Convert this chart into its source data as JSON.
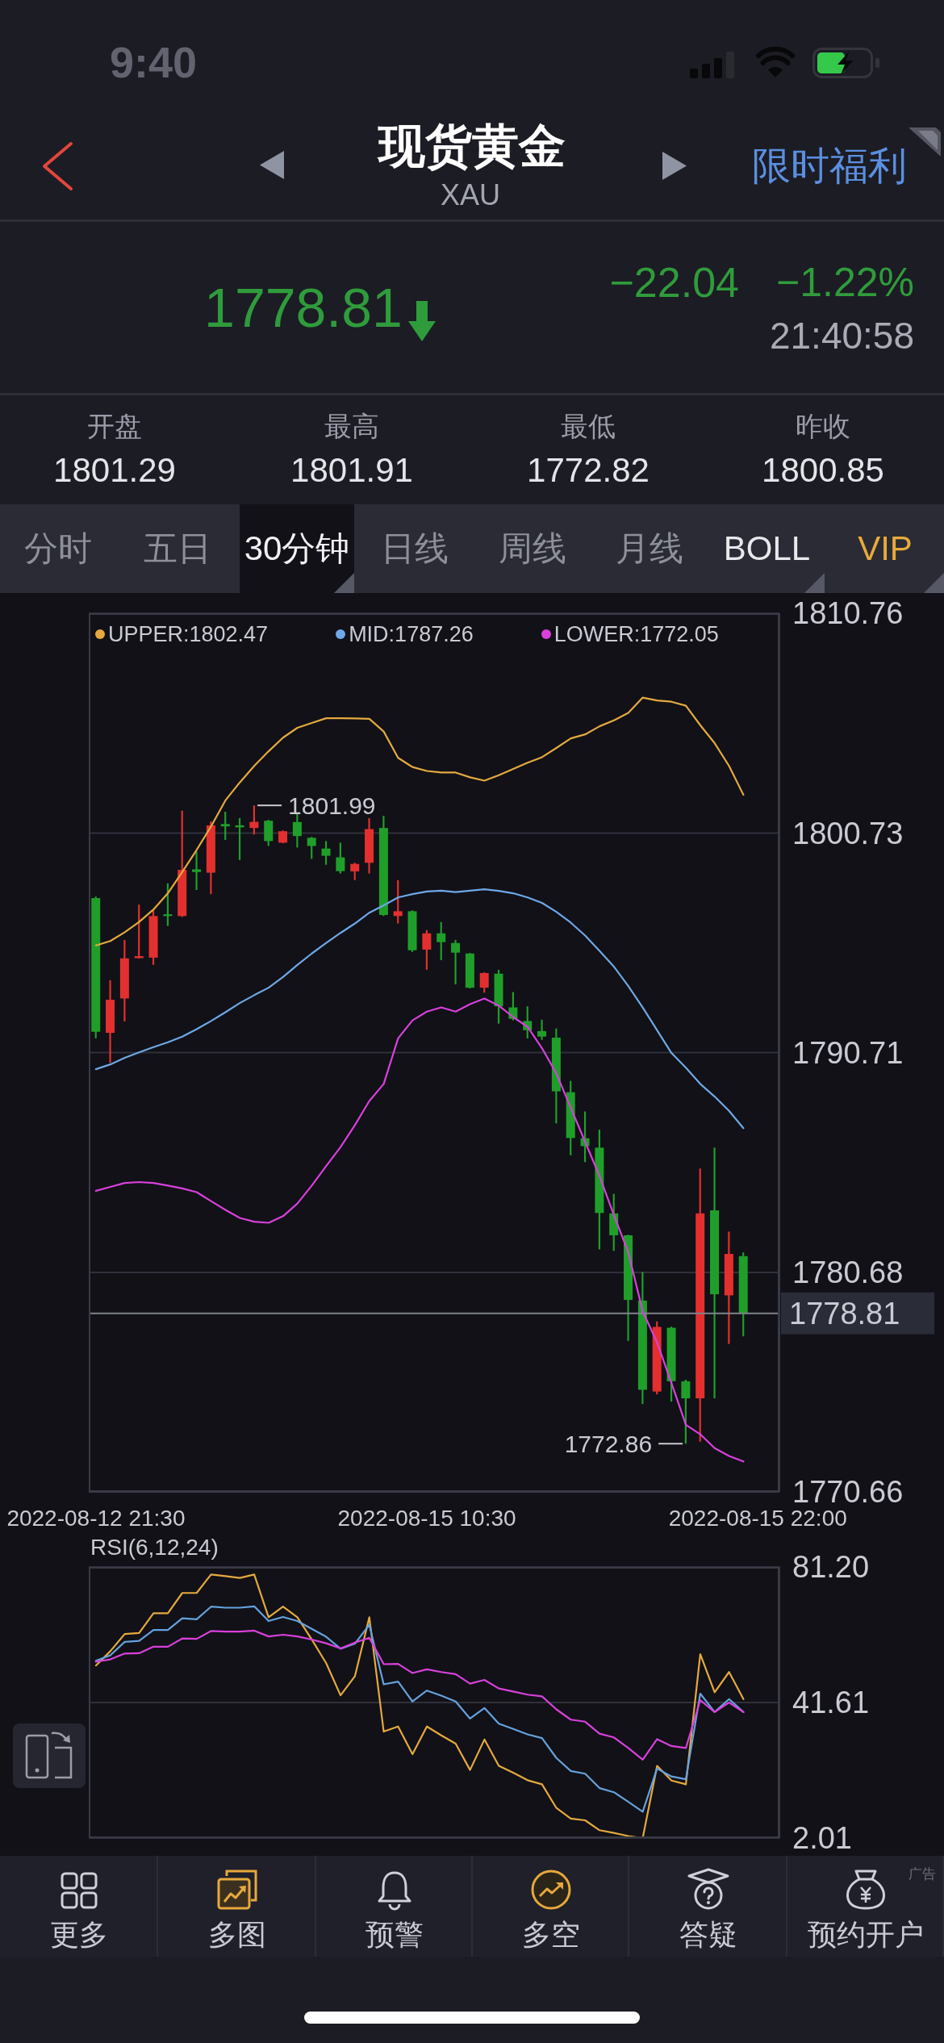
{
  "chart_data": [
    {
      "type": "other",
      "title": "现货黄金",
      "subtitle": "XAU",
      "annotations": [
        "9:40",
        "限时福利",
        "1778.81",
        "−22.04",
        "−1.22%",
        "21:40:58",
        "开盘",
        "1801.29",
        "最高",
        "1801.91",
        "最低",
        "1772.82",
        "昨收",
        "1800.85",
        "分时",
        "五日",
        "30分钟",
        "日线",
        "周线",
        "月线",
        "BOLL",
        "VIP"
      ]
    },
    {
      "type": "candlestick",
      "categories": [
        "2022-08-12 21:30",
        null,
        null,
        null,
        null,
        null,
        null,
        null,
        null,
        null,
        null,
        null,
        null,
        null,
        null,
        null,
        null,
        null,
        null,
        null,
        null,
        null,
        null,
        "2022-08-15 10:30",
        null,
        null,
        null,
        null,
        null,
        null,
        null,
        null,
        null,
        null,
        null,
        null,
        null,
        null,
        null,
        null,
        null,
        null,
        null,
        null,
        null,
        null,
        "2022-08-15 22:00",
        null
      ],
      "ohlc": [
        [
          1797.76,
          1797.83,
          1791.36,
          1791.66
        ],
        [
          1791.61,
          1794.01,
          1790.24,
          1793.12
        ],
        [
          1793.18,
          1795.85,
          1792.13,
          1795.01
        ],
        [
          1795.02,
          1797.46,
          1795.0,
          1795.11
        ],
        [
          1795.04,
          1797.19,
          1794.71,
          1796.94
        ],
        [
          1797.02,
          1798.43,
          1796.49,
          1796.94
        ],
        [
          1796.94,
          1801.75,
          1796.9,
          1799.05
        ],
        [
          1799.07,
          1799.87,
          1798.13,
          1798.95
        ],
        [
          1798.92,
          1801.26,
          1797.94,
          1801.08
        ],
        [
          1801.14,
          1801.7,
          1800.41,
          1801.03
        ],
        [
          1801.08,
          1801.41,
          1799.5,
          1800.99
        ],
        [
          1800.96,
          1801.99,
          1800.66,
          1801.24
        ],
        [
          1801.29,
          1801.33,
          1800.14,
          1800.36
        ],
        [
          1800.29,
          1800.85,
          1800.26,
          1800.81
        ],
        [
          1801.23,
          1801.63,
          1800.07,
          1800.59
        ],
        [
          1800.51,
          1800.55,
          1799.55,
          1800.14
        ],
        [
          1800.02,
          1800.36,
          1799.28,
          1799.69
        ],
        [
          1799.62,
          1800.29,
          1798.88,
          1798.99
        ],
        [
          1798.98,
          1799.37,
          1798.58,
          1799.32
        ],
        [
          1799.37,
          1801.41,
          1798.88,
          1800.91
        ],
        [
          1800.96,
          1801.51,
          1796.94,
          1796.99
        ],
        [
          1796.94,
          1798.58,
          1796.6,
          1797.16
        ],
        [
          1797.16,
          1797.2,
          1795.3,
          1795.38
        ],
        [
          1795.41,
          1796.3,
          1794.49,
          1796.15
        ],
        [
          1796.15,
          1796.67,
          1794.93,
          1795.75
        ],
        [
          1795.71,
          1795.85,
          1793.82,
          1795.27
        ],
        [
          1795.23,
          1795.26,
          1793.64,
          1793.67
        ],
        [
          1793.67,
          1794.37,
          1793.44,
          1794.34
        ],
        [
          1794.31,
          1794.49,
          1792.03,
          1792.82
        ],
        [
          1792.77,
          1793.47,
          1792.18,
          1792.25
        ],
        [
          1792.15,
          1792.82,
          1791.36,
          1791.73
        ],
        [
          1791.69,
          1792.21,
          1791.29,
          1791.44
        ],
        [
          1791.39,
          1791.81,
          1787.48,
          1788.94
        ],
        [
          1788.9,
          1789.42,
          1786.02,
          1786.81
        ],
        [
          1786.8,
          1788.02,
          1785.71,
          1786.44
        ],
        [
          1786.37,
          1787.19,
          1781.73,
          1783.39
        ],
        [
          1783.37,
          1784.26,
          1781.66,
          1782.37
        ],
        [
          1782.37,
          1782.4,
          1777.55,
          1779.42
        ],
        [
          1779.39,
          1780.7,
          1774.67,
          1775.32
        ],
        [
          1775.24,
          1778.44,
          1775.11,
          1778.19
        ],
        [
          1778.15,
          1778.2,
          1774.78,
          1775.71
        ],
        [
          1775.71,
          1775.78,
          1772.86,
          1774.93
        ],
        [
          1774.93,
          1785.42,
          1772.95,
          1783.37
        ],
        [
          1783.51,
          1786.37,
          1774.93,
          1779.68
        ],
        [
          1779.63,
          1782.54,
          1777.41,
          1781.52
        ],
        [
          1781.42,
          1781.59,
          1777.76,
          1778.81
        ],
        null,
        null
      ],
      "colors": [
        "#1f9f2a",
        "#e3302f",
        "#e3302f",
        "#e3302f",
        "#e3302f",
        "#1f9f2a",
        "#e3302f",
        "#1f9f2a",
        "#e3302f",
        "#1f9f2a",
        "#1f9f2a",
        "#e3302f",
        "#1f9f2a",
        "#e3302f",
        "#1f9f2a",
        "#1f9f2a",
        "#1f9f2a",
        "#1f9f2a",
        "#e3302f",
        "#e3302f",
        "#1f9f2a",
        "#e3302f",
        "#1f9f2a",
        "#e3302f",
        "#1f9f2a",
        "#1f9f2a",
        "#1f9f2a",
        "#e3302f",
        "#1f9f2a",
        "#1f9f2a",
        "#1f9f2a",
        "#1f9f2a",
        "#1f9f2a",
        "#1f9f2a",
        "#1f9f2a",
        "#1f9f2a",
        "#1f9f2a",
        "#1f9f2a",
        "#1f9f2a",
        "#e3302f",
        "#1f9f2a",
        "#1f9f2a",
        "#e3302f",
        "#1f9f2a",
        "#e3302f",
        "#1f9f2a",
        null,
        null
      ],
      "series": [
        {
          "type": "line",
          "name": "UPPER:1802.47",
          "color": "#e5a93f",
          "values": [
            1795.6,
            1795.8,
            1796.2,
            1796.67,
            1797.24,
            1797.98,
            1798.95,
            1799.96,
            1801.03,
            1802.22,
            1803.04,
            1803.79,
            1804.46,
            1805.08,
            1805.53,
            1805.75,
            1805.97,
            1805.97,
            1805.96,
            1805.94,
            1805.36,
            1804.16,
            1803.74,
            1803.56,
            1803.49,
            1803.49,
            1803.27,
            1803.12,
            1803.37,
            1803.65,
            1803.94,
            1804.19,
            1804.61,
            1805.05,
            1805.23,
            1805.6,
            1805.87,
            1806.21,
            1806.91,
            1806.78,
            1806.72,
            1806.54,
            1805.65,
            1804.83,
            1803.79,
            1802.47,
            null,
            null
          ]
        },
        {
          "type": "line",
          "name": "MID:1787.26",
          "color": "#6ea8e6",
          "values": [
            1789.95,
            1790.17,
            1790.47,
            1790.72,
            1790.96,
            1791.18,
            1791.44,
            1791.78,
            1792.15,
            1792.55,
            1792.97,
            1793.33,
            1793.67,
            1794.16,
            1794.71,
            1795.23,
            1795.71,
            1796.17,
            1796.6,
            1797.09,
            1797.43,
            1797.79,
            1797.94,
            1798.06,
            1798.1,
            1798.03,
            1798.1,
            1798.16,
            1798.09,
            1797.98,
            1797.79,
            1797.54,
            1797.13,
            1796.64,
            1796.05,
            1795.35,
            1794.63,
            1793.74,
            1792.77,
            1791.73,
            1790.69,
            1790.02,
            1789.28,
            1788.7,
            1788.05,
            1787.26,
            null,
            null
          ]
        },
        {
          "type": "line",
          "name": "LOWER:1772.05",
          "color": "#d940dc",
          "values": [
            1784.4,
            1784.58,
            1784.76,
            1784.8,
            1784.76,
            1784.64,
            1784.51,
            1784.34,
            1783.93,
            1783.53,
            1783.16,
            1782.99,
            1782.94,
            1783.24,
            1783.82,
            1784.64,
            1785.53,
            1786.4,
            1787.4,
            1788.5,
            1789.28,
            1791.36,
            1792.18,
            1792.58,
            1792.77,
            1792.58,
            1792.92,
            1793.18,
            1792.85,
            1792.33,
            1791.88,
            1790.91,
            1789.75,
            1788.19,
            1786.63,
            1785.07,
            1783.29,
            1781.59,
            1778.9,
            1777.48,
            1775.63,
            1773.72,
            1773.29,
            1772.66,
            1772.3,
            1772.05,
            null,
            null
          ]
        }
      ],
      "ylim": [
        1770.66,
        1810.76
      ],
      "yticks": [
        1770.66,
        1780.68,
        1790.71,
        1800.73,
        1810.76
      ],
      "grid": "y",
      "legend": "top",
      "annotations": [
        "1801.99",
        "1772.86"
      ],
      "ref_lines": [
        {
          "axis": "y",
          "value": 1778.81,
          "label": "1778.81",
          "color": "#80828d"
        }
      ]
    },
    {
      "type": "line",
      "title": "RSI(6,12,24)",
      "categories": [
        "2022-08-12 21:30",
        null,
        null,
        null,
        null,
        null,
        null,
        null,
        null,
        null,
        null,
        null,
        null,
        null,
        null,
        null,
        null,
        null,
        null,
        null,
        null,
        null,
        null,
        "2022-08-15 10:30",
        null,
        null,
        null,
        null,
        null,
        null,
        null,
        null,
        null,
        null,
        null,
        null,
        null,
        null,
        null,
        null,
        null,
        null,
        null,
        null,
        null,
        null,
        "2022-08-15 22:00",
        null
      ],
      "series": [
        {
          "color": "#e5a93f",
          "values": [
            52.4,
            56.6,
            61.6,
            61.9,
            67.7,
            67.7,
            73.6,
            73.6,
            79.0,
            78.5,
            78.0,
            79.0,
            66.5,
            69.6,
            66.5,
            60.0,
            53.1,
            43.7,
            49.3,
            66.5,
            33.1,
            34.6,
            26.5,
            34.6,
            32.0,
            29.6,
            21.9,
            30.8,
            23.1,
            21.1,
            18.9,
            17.7,
            10.8,
            7.7,
            7.2,
            4.3,
            3.5,
            2.6,
            2.01,
            23.1,
            18.8,
            17.7,
            55.7,
            44.6,
            50.5,
            42.6,
            null,
            null
          ]
        },
        {
          "color": "#65a2de",
          "values": [
            53.8,
            55.4,
            59.3,
            59.6,
            62.8,
            62.8,
            66.2,
            65.9,
            69.6,
            69.3,
            69.3,
            69.7,
            65.4,
            66.6,
            65.4,
            63.1,
            60.8,
            57.3,
            58.8,
            64.3,
            46.9,
            47.7,
            41.9,
            45.1,
            43.6,
            41.9,
            36.9,
            40.0,
            35.4,
            33.9,
            32.3,
            31.2,
            25.4,
            21.6,
            20.8,
            16.6,
            15.4,
            12.6,
            9.7,
            22.3,
            20.0,
            19.2,
            44.2,
            38.8,
            42.6,
            38.8,
            null,
            null
          ]
        },
        {
          "color": "#d940dc",
          "values": [
            53.5,
            54.2,
            55.9,
            56.0,
            57.9,
            57.9,
            60.3,
            60.2,
            62.5,
            62.3,
            62.3,
            62.6,
            60.9,
            61.4,
            60.9,
            60.0,
            58.9,
            57.4,
            59.1,
            60.5,
            52.8,
            52.9,
            50.2,
            51.3,
            50.5,
            49.9,
            47.1,
            48.2,
            45.7,
            44.8,
            43.9,
            43.4,
            39.6,
            36.6,
            36.0,
            32.5,
            31.4,
            28.3,
            24.9,
            30.9,
            28.9,
            28.3,
            42.3,
            38.8,
            41.6,
            38.8,
            null,
            null
          ]
        }
      ],
      "ylim": [
        2.01,
        81.2
      ],
      "yticks": [
        2.01,
        41.61,
        {
          "value": 81.2,
          "label": "81.20"
        }
      ],
      "grid": "y",
      "tick_labels": "y"
    },
    {
      "type": "other",
      "annotations": [
        "更多",
        "多图",
        "预警",
        "多空",
        "答疑",
        "预约开户",
        "广告"
      ]
    }
  ]
}
